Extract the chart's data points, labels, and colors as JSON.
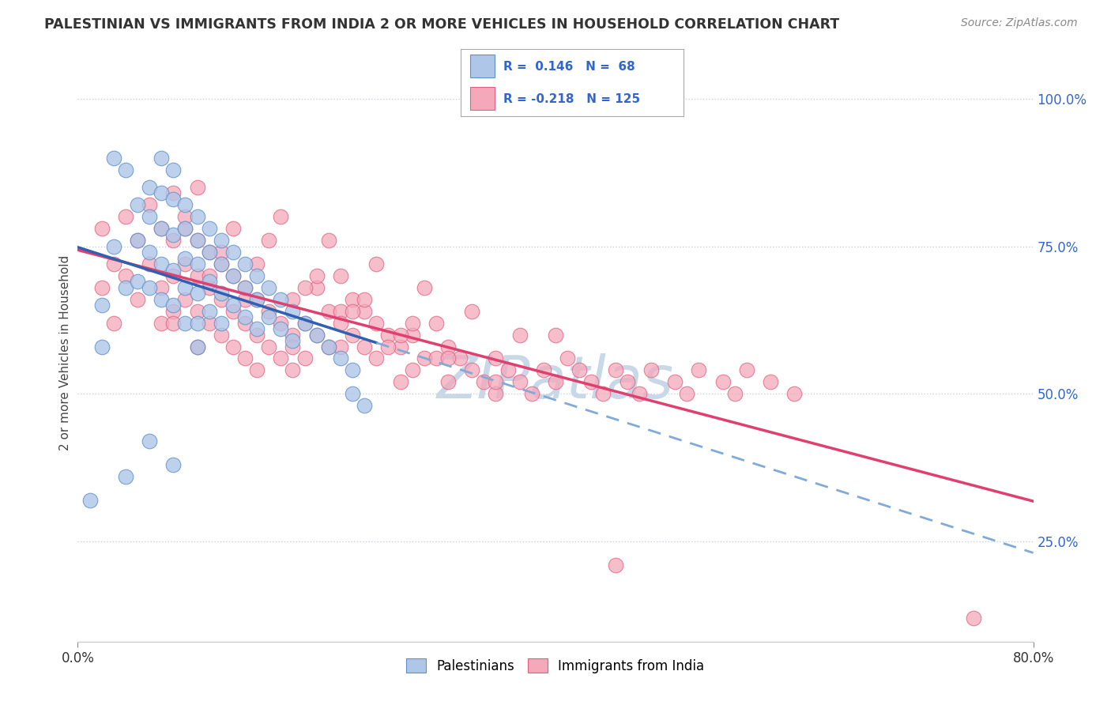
{
  "title": "PALESTINIAN VS IMMIGRANTS FROM INDIA 2 OR MORE VEHICLES IN HOUSEHOLD CORRELATION CHART",
  "source": "Source: ZipAtlas.com",
  "ylabel": "2 or more Vehicles in Household",
  "ytick_labels": [
    "25.0%",
    "50.0%",
    "75.0%",
    "100.0%"
  ],
  "ytick_values": [
    0.25,
    0.5,
    0.75,
    1.0
  ],
  "xmin": 0.0,
  "xmax": 0.8,
  "ymin": 0.08,
  "ymax": 1.06,
  "legend_r_blue": "0.146",
  "legend_n_blue": "68",
  "legend_r_pink": "-0.218",
  "legend_n_pink": "125",
  "blue_fill": "#aec6e8",
  "blue_edge": "#6090c8",
  "pink_fill": "#f4a8ba",
  "pink_edge": "#e06080",
  "trend_blue_solid": "#3060b0",
  "trend_blue_dash": "#80aad8",
  "trend_pink": "#e04070",
  "legend_text_color": "#3366cc",
  "axis_label_color": "#3366cc",
  "title_color": "#333333",
  "watermark_color": "#c8d8e8",
  "grid_color": "#c8d0dc",
  "bg_color": "#ffffff"
}
